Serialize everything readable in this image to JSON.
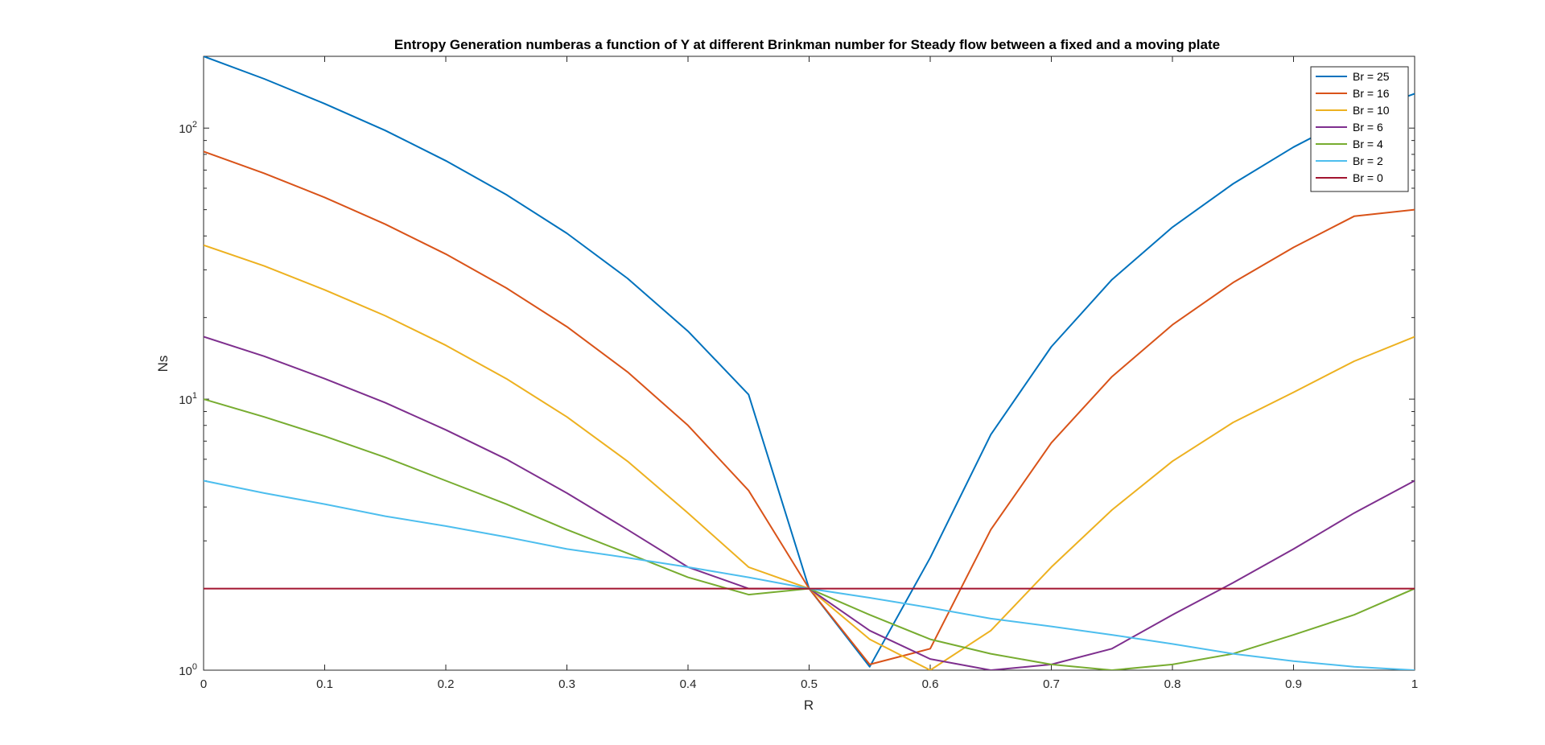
{
  "chart_data": {
    "type": "line",
    "title": "Entropy Generation numberas a function of Y at different Brinkman number for Steady flow between a fixed and a moving plate",
    "xlabel": "R",
    "ylabel": "Ns",
    "xlim": [
      0,
      1
    ],
    "ylim": [
      1,
      184
    ],
    "yscale": "log",
    "grid": false,
    "legend_position": "top-right",
    "x_ticks": [
      "0",
      "0.1",
      "0.2",
      "0.3",
      "0.4",
      "0.5",
      "0.6",
      "0.7",
      "0.8",
      "0.9",
      "1"
    ],
    "y_ticks": [
      {
        "base": "10",
        "exp": "0"
      },
      {
        "base": "10",
        "exp": "1"
      },
      {
        "base": "10",
        "exp": "2"
      }
    ],
    "x": [
      0,
      0.05,
      0.1,
      0.15,
      0.2,
      0.25,
      0.3,
      0.35,
      0.4,
      0.45,
      0.5,
      0.55,
      0.6,
      0.65,
      0.7,
      0.75,
      0.8,
      0.85,
      0.9,
      0.95,
      1
    ],
    "series": [
      {
        "name": "Br = 25",
        "color": "#0072BD",
        "values": [
          184,
          152,
          123,
          98,
          75.8,
          56.8,
          40.9,
          27.9,
          17.8,
          10.4,
          2.0,
          1.03,
          2.6,
          7.4,
          15.6,
          27.6,
          43.1,
          62.3,
          85.1,
          111,
          134
        ]
      },
      {
        "name": "Br = 16",
        "color": "#D95319",
        "values": [
          82,
          68.1,
          55.5,
          44.2,
          34.3,
          25.7,
          18.5,
          12.6,
          8.0,
          4.6,
          2.0,
          1.05,
          1.2,
          3.3,
          6.9,
          12.1,
          18.8,
          26.9,
          36.3,
          47.3,
          50
        ]
      },
      {
        "name": "Br = 10",
        "color": "#EDB120",
        "values": [
          37,
          31,
          25.3,
          20.3,
          15.8,
          11.9,
          8.6,
          5.9,
          3.8,
          2.4,
          2.0,
          1.3,
          1.0,
          1.4,
          2.4,
          3.9,
          5.9,
          8.2,
          10.6,
          13.8,
          17
        ]
      },
      {
        "name": "Br = 6",
        "color": "#7E2F8E",
        "values": [
          17,
          14.4,
          11.9,
          9.7,
          7.7,
          6.0,
          4.5,
          3.3,
          2.4,
          2.0,
          2.0,
          1.4,
          1.1,
          1.0,
          1.05,
          1.2,
          1.6,
          2.1,
          2.8,
          3.8,
          5
        ]
      },
      {
        "name": "Br = 4",
        "color": "#77AC30",
        "values": [
          10,
          8.6,
          7.3,
          6.1,
          5.0,
          4.1,
          3.3,
          2.7,
          2.2,
          1.9,
          2.0,
          1.6,
          1.3,
          1.15,
          1.05,
          1.0,
          1.05,
          1.15,
          1.35,
          1.6,
          2
        ]
      },
      {
        "name": "Br = 2",
        "color": "#4DBEEE",
        "values": [
          5,
          4.5,
          4.1,
          3.7,
          3.4,
          3.1,
          2.8,
          2.6,
          2.4,
          2.2,
          2.0,
          1.85,
          1.7,
          1.55,
          1.45,
          1.35,
          1.25,
          1.15,
          1.08,
          1.03,
          1
        ]
      },
      {
        "name": "Br = 0",
        "color": "#A2142F",
        "values": [
          2,
          2,
          2,
          2,
          2,
          2,
          2,
          2,
          2,
          2,
          2,
          2,
          2,
          2,
          2,
          2,
          2,
          2,
          2,
          2,
          2
        ]
      }
    ]
  }
}
